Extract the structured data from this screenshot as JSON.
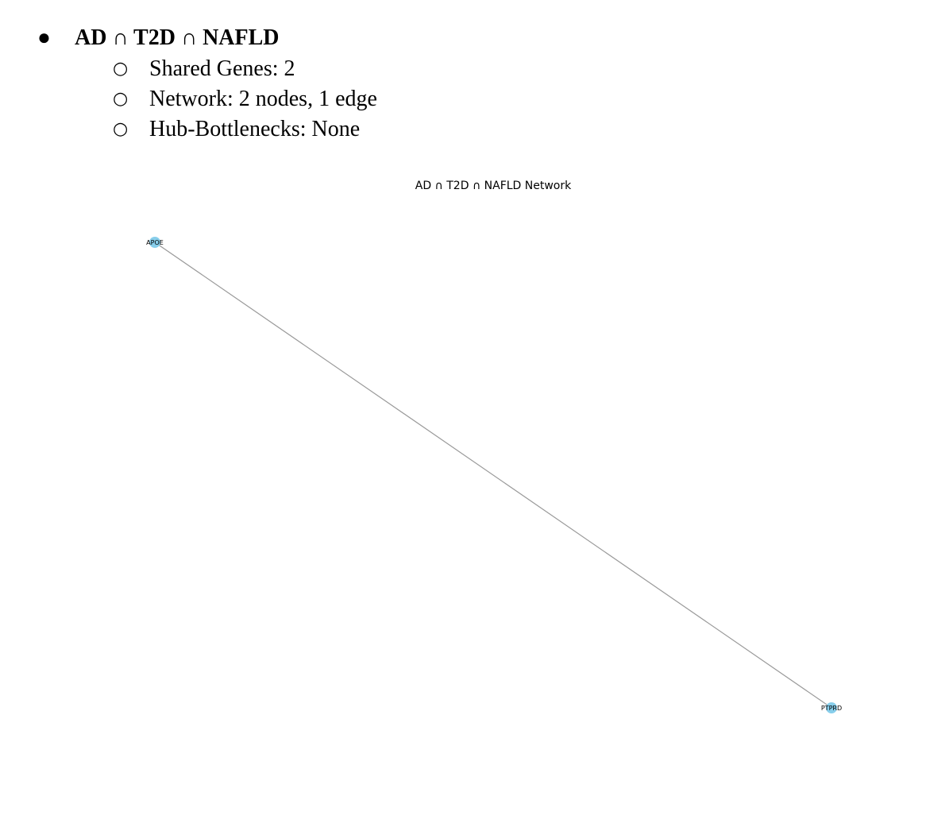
{
  "section": {
    "bullet": "●",
    "heading": "AD ∩ T2D ∩ NAFLD",
    "sub_bullet": "○",
    "items": [
      "Shared Genes: 2",
      "Network: 2 nodes, 1 edge",
      "Hub-Bottlenecks: None"
    ]
  },
  "figure": {
    "title": "AD ∩ T2D ∩ NAFLD Network",
    "node_color": "#87ceeb",
    "edge_color": "#999999",
    "nodes": [
      {
        "id": "APOE",
        "label": "APOE"
      },
      {
        "id": "PTPRD",
        "label": "PTPRD"
      }
    ],
    "edges": [
      {
        "source": "APOE",
        "target": "PTPRD"
      }
    ]
  }
}
